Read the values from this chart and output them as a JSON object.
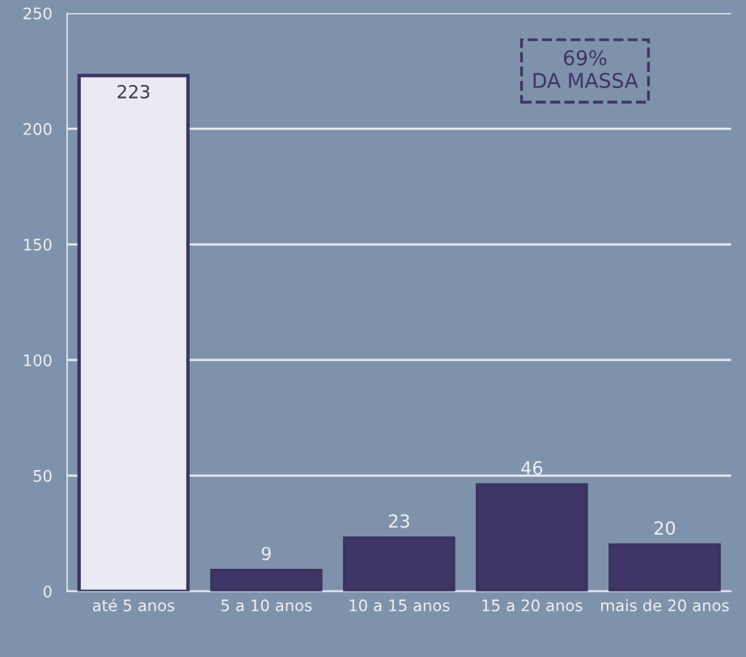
{
  "chart_data": {
    "type": "bar",
    "categories": [
      "até 5 anos",
      "5 a 10 anos",
      "10 a 15 anos",
      "15 a 20 anos",
      "mais de 20 anos"
    ],
    "values": [
      223,
      9,
      23,
      46,
      20
    ],
    "colors": [
      "#e9eaf3",
      "#3f3566",
      "#3f3566",
      "#3f3566",
      "#3f3566"
    ],
    "ylim": [
      0,
      250
    ],
    "yticks": [
      0,
      50,
      100,
      150,
      200,
      250
    ],
    "grid": "y",
    "data_labels": true,
    "annotations": [
      "69%\nDA MASSA"
    ]
  }
}
